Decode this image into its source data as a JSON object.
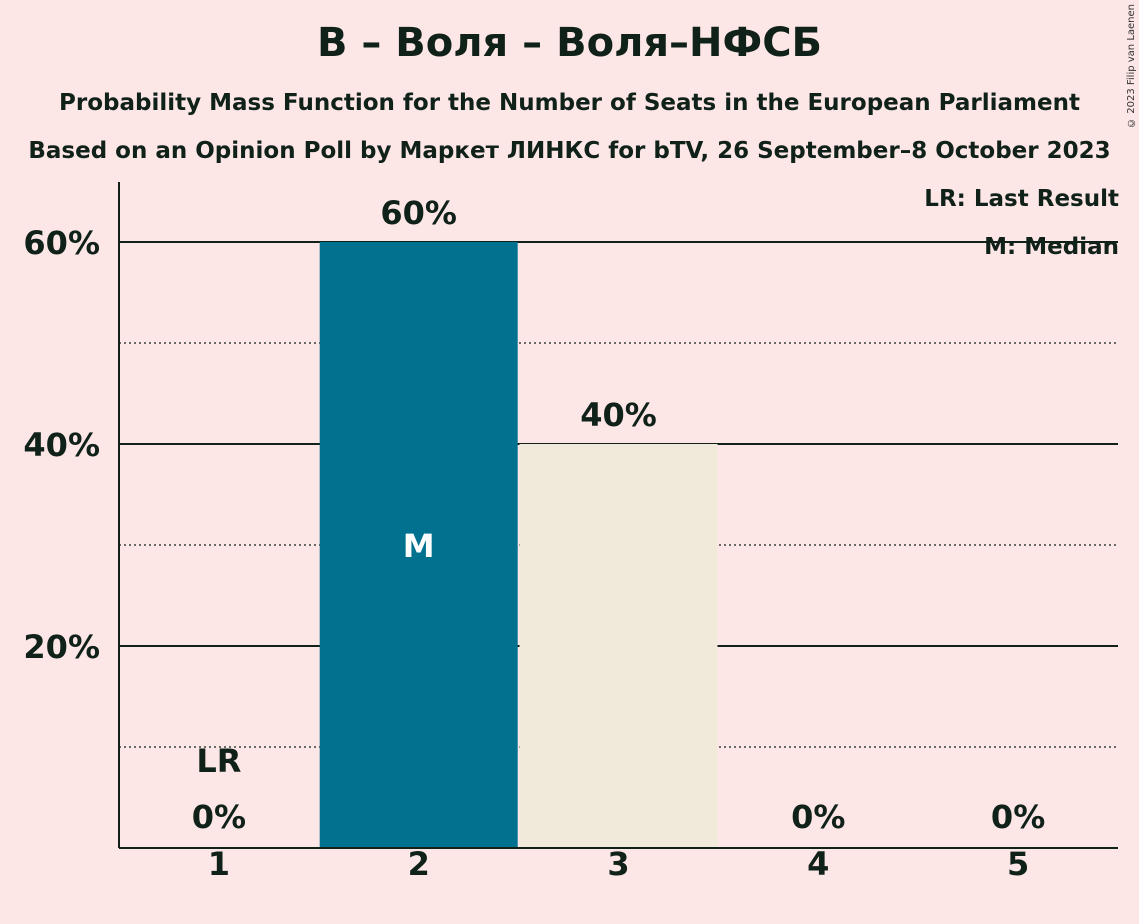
{
  "title": "В – Воля – Воля–НФСБ",
  "subtitle1": "Probability Mass Function for the Number of Seats in the European Parliament",
  "subtitle2": "Based on an Opinion Poll by Маркет ЛИНКС for bTV, 26 September–8 October 2023",
  "copyright": "© 2023 Filip van Laenen",
  "legend": {
    "last_result": "LR: Last Result",
    "median": "M: Median"
  },
  "colors": {
    "background": "#fde6e6",
    "median_bar": "#007290",
    "other_bar": "#f1e9d9",
    "text": "#0f2119"
  },
  "chart_data": {
    "type": "bar",
    "categories": [
      "1",
      "2",
      "3",
      "4",
      "5"
    ],
    "values": [
      0,
      60,
      40,
      0,
      0
    ],
    "value_labels": [
      "0%",
      "60%",
      "40%",
      "0%",
      "0%"
    ],
    "bar_colors": [
      "#007290",
      "#007290",
      "#f1e9d9",
      "#f1e9d9",
      "#f1e9d9"
    ],
    "median_index": 1,
    "median_label": "M",
    "last_result_index": 0,
    "last_result_label": "LR",
    "ylim": [
      0,
      66
    ],
    "yticks": [
      20,
      40,
      60
    ],
    "ytick_labels": [
      "20%",
      "40%",
      "60%"
    ],
    "minor_gridlines": [
      10,
      30,
      50
    ],
    "legend_position": "top-right"
  }
}
